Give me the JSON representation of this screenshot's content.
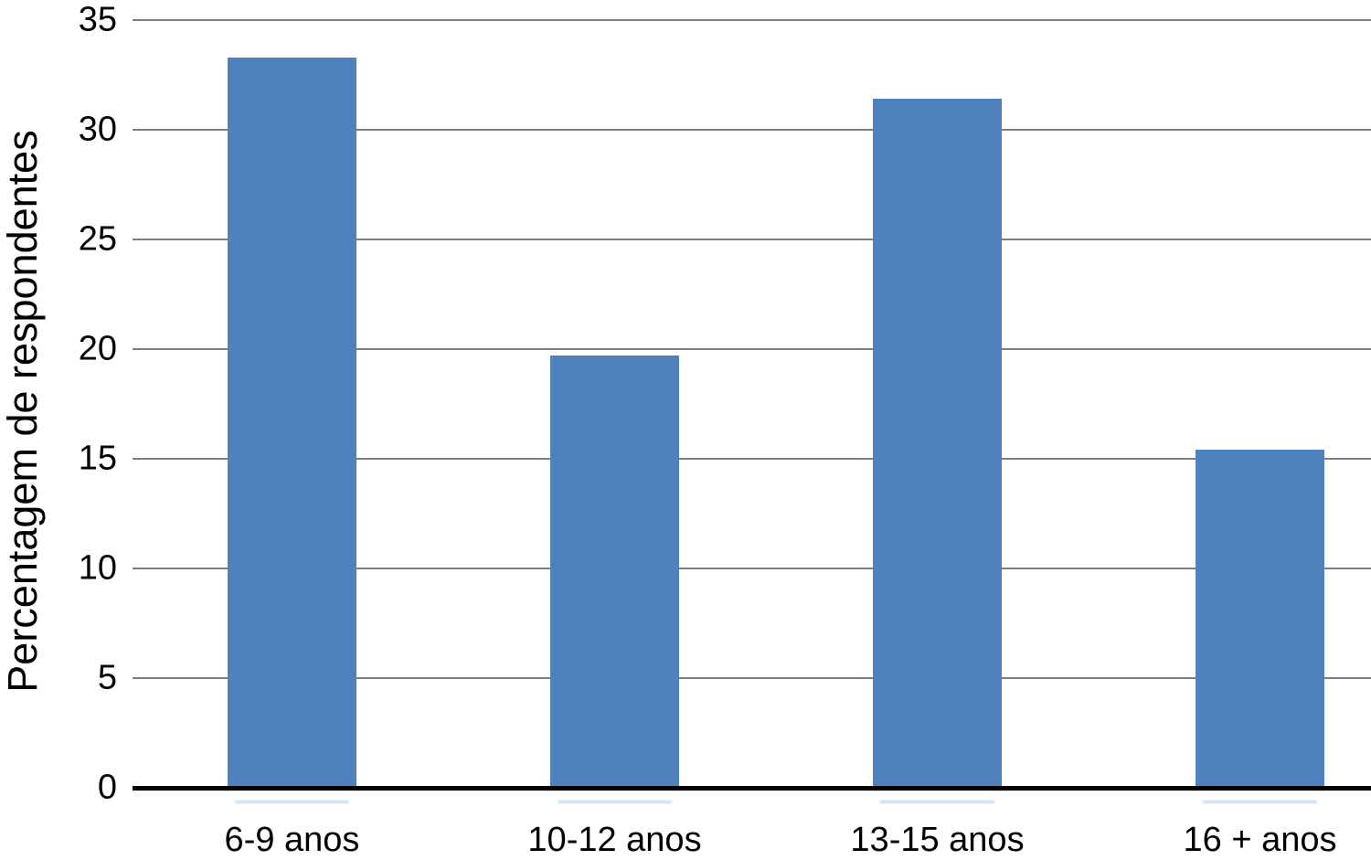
{
  "chart_data": {
    "type": "bar",
    "categories": [
      "6-9 anos",
      "10-12 anos",
      "13-15 anos",
      "16 + anos"
    ],
    "values": [
      33.3,
      19.7,
      31.4,
      15.4
    ],
    "title": "",
    "xlabel": "",
    "ylabel": "Percentagem de respondentes",
    "ylim": [
      0,
      35
    ],
    "yticks": [
      0,
      5,
      10,
      15,
      20,
      25,
      30,
      35
    ],
    "grid": true,
    "legend": false,
    "bar_color": "#4f81bd",
    "gridline_color": "#7f7f7f",
    "axis_color": "#000000",
    "text_color": "#000000"
  }
}
